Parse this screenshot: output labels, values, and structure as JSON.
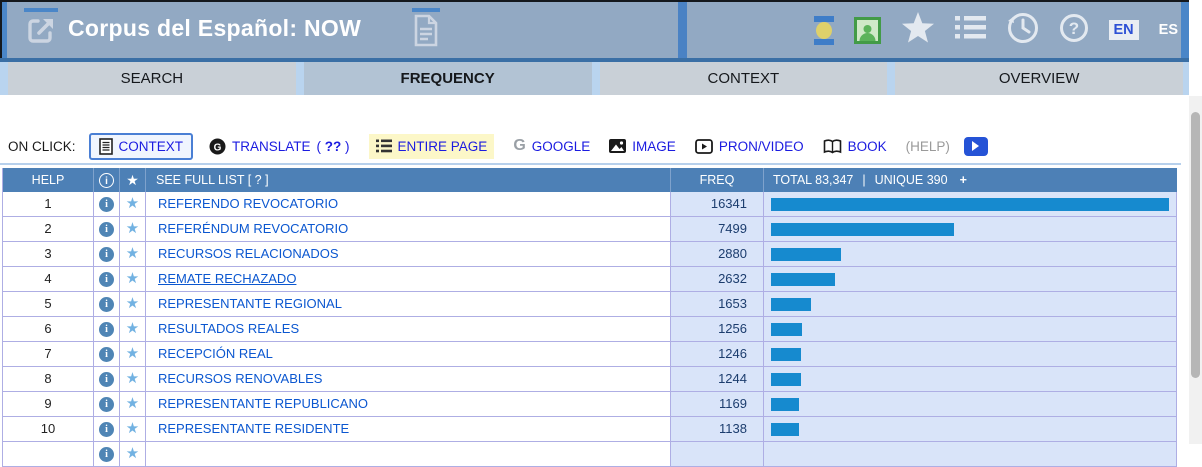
{
  "header": {
    "title": "Corpus del Español: NOW",
    "lang_en": "EN",
    "lang_es": "ES",
    "icons": [
      "external-link-icon",
      "document-icon",
      "account-toggle-icon",
      "profile-icon",
      "favorites-star-icon",
      "word-list-icon",
      "history-icon",
      "help-icon"
    ]
  },
  "tabs": [
    {
      "label": "SEARCH",
      "active": false
    },
    {
      "label": "FREQUENCY",
      "active": true
    },
    {
      "label": "CONTEXT",
      "active": false
    },
    {
      "label": "OVERVIEW",
      "active": false
    }
  ],
  "on_click": {
    "label": "ON CLICK:",
    "context": {
      "label": "CONTEXT",
      "icon": "document-lines-icon"
    },
    "translate": {
      "label": "TRANSLATE",
      "open": "( ",
      "strong": "??",
      "close": " )",
      "icon": "translate-circle-icon"
    },
    "entire_page": {
      "label": "ENTIRE PAGE",
      "icon": "list-icon"
    },
    "google": {
      "label": "GOOGLE",
      "icon": "google-g-icon"
    },
    "image": {
      "label": "IMAGE",
      "icon": "image-icon"
    },
    "pron_video": {
      "label": "PRON/VIDEO",
      "icon": "video-play-icon"
    },
    "book": {
      "label": "BOOK",
      "icon": "book-icon"
    },
    "help": {
      "label": "(HELP)"
    },
    "play": {
      "icon": "play-button-icon"
    }
  },
  "table": {
    "header": {
      "help": "HELP",
      "see_full_list": "SEE FULL LIST  [ ? ]",
      "freq": "FREQ",
      "total": "TOTAL 83,347",
      "pipe": "|",
      "unique": "UNIQUE 390",
      "plus": "+"
    },
    "max_freq": 16341,
    "rows": [
      {
        "rank": "1",
        "word": "REFERENDO REVOCATORIO",
        "freq": 16341,
        "underlined": false
      },
      {
        "rank": "2",
        "word": "REFERÉNDUM REVOCATORIO",
        "freq": 7499,
        "underlined": false
      },
      {
        "rank": "3",
        "word": "RECURSOS RELACIONADOS",
        "freq": 2880,
        "underlined": false
      },
      {
        "rank": "4",
        "word": "REMATE RECHAZADO",
        "freq": 2632,
        "underlined": true
      },
      {
        "rank": "5",
        "word": "REPRESENTANTE REGIONAL",
        "freq": 1653,
        "underlined": false
      },
      {
        "rank": "6",
        "word": "RESULTADOS REALES",
        "freq": 1256,
        "underlined": false
      },
      {
        "rank": "7",
        "word": "RECEPCIÓN REAL",
        "freq": 1246,
        "underlined": false
      },
      {
        "rank": "8",
        "word": "RECURSOS RENOVABLES",
        "freq": 1244,
        "underlined": false
      },
      {
        "rank": "9",
        "word": "REPRESENTANTE REPUBLICANO",
        "freq": 1169,
        "underlined": false
      },
      {
        "rank": "10",
        "word": "REPRESENTANTE RESIDENTE",
        "freq": 1138,
        "underlined": false
      }
    ],
    "colors": {
      "bar": "#168acf",
      "row_highlight_bg": "#d9e4f9",
      "header_bg": "#4d80b6"
    }
  },
  "colors": {
    "header_bg": "#92a9c3",
    "header_border": "#4a86c8",
    "tab_active_bg": "#b2c3d4",
    "tab_bg": "#c9d0d7",
    "tabs_gap_bg": "#b9d4ef",
    "link_blue": "#1b1be0",
    "word_link_blue": "#0b57d0",
    "entire_page_highlight": "#fcf7c8"
  }
}
